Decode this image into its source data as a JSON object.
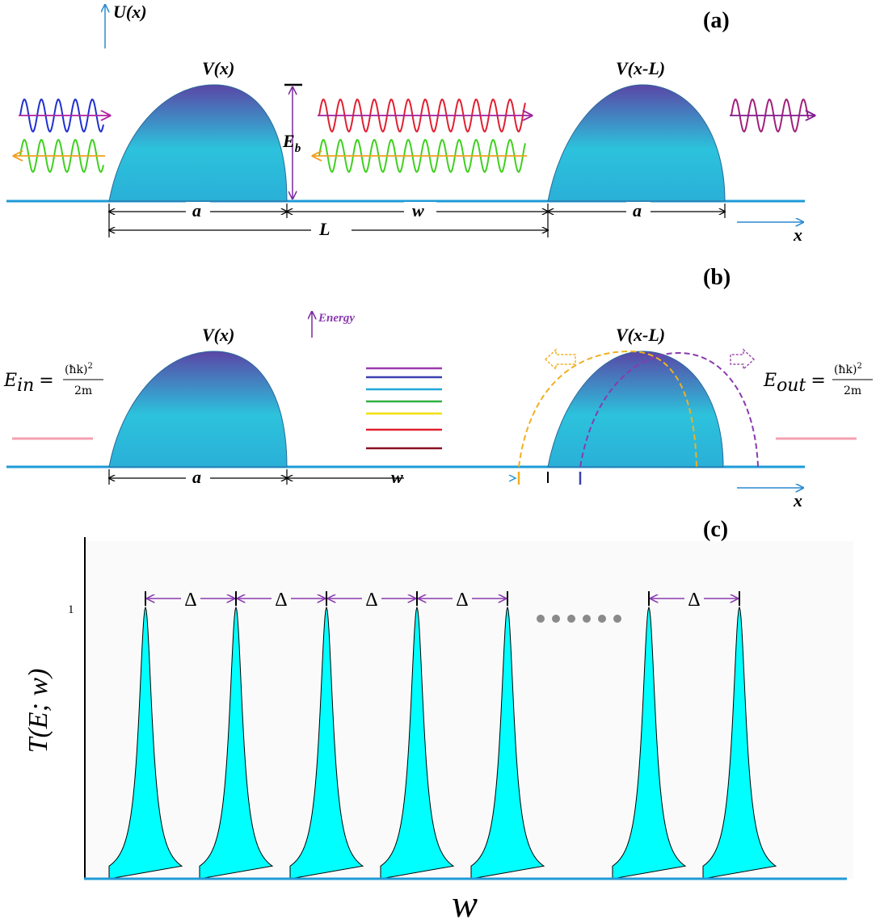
{
  "panel_a": {
    "label": "(a)",
    "axis_label": "U(x)",
    "barrier_1": "V(x)",
    "barrier_2": "V(x-L)",
    "barrier_height": {
      "symbol": "E",
      "subscript": "b"
    },
    "dimensions": [
      "a",
      "w",
      "a",
      "L"
    ],
    "x_label": "x"
  },
  "panel_b": {
    "label": "(b)",
    "energy_label": "Energy",
    "barrier_1": "V(x)",
    "barrier_2": "V(x-L)",
    "e_in": {
      "symbol": "E",
      "subscript": "in",
      "equals": "=",
      "numerator": "(ħk)",
      "power": "2",
      "denominator": "2m"
    },
    "e_out": {
      "symbol": "E",
      "subscript": "out",
      "equals": "=",
      "numerator": "(ħk)",
      "power": "2",
      "denominator": "2m"
    },
    "dimensions": [
      "a",
      "w"
    ],
    "x_label": "x"
  },
  "panel_c": {
    "label": "(c)",
    "y_label": "T(E; w)",
    "x_label": "w",
    "y_tick": "1",
    "spacings": [
      "Δ",
      "Δ",
      "Δ",
      "Δ",
      "Δ"
    ]
  }
}
